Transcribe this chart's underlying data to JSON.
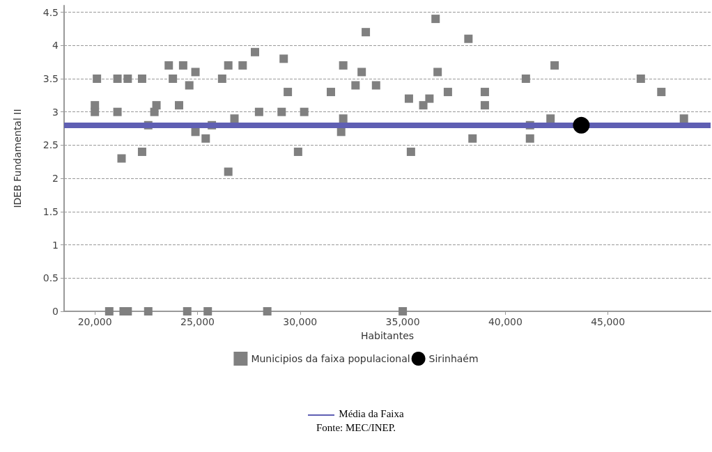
{
  "chart_data": {
    "type": "scatter",
    "xlabel": "Habitantes",
    "ylabel": "IDEB Fundamental II",
    "xlim": [
      18500,
      50000
    ],
    "ylim": [
      0,
      4.6
    ],
    "xticks": [
      {
        "value": 20000,
        "label": "20,000"
      },
      {
        "value": 25000,
        "label": "25,000"
      },
      {
        "value": 30000,
        "label": "30,000"
      },
      {
        "value": 35000,
        "label": "35,000"
      },
      {
        "value": 40000,
        "label": "40,000"
      },
      {
        "value": 45000,
        "label": "45,000"
      }
    ],
    "yticks": [
      0,
      0.5,
      1,
      1.5,
      2,
      2.5,
      3,
      3.5,
      4,
      4.5
    ],
    "grid": "y",
    "legend": "bottom",
    "series": [
      {
        "name": "Municipios da faixa populacional",
        "color": "#808080",
        "marker": "square",
        "x": [
          20100,
          20000,
          20000,
          20700,
          21100,
          21100,
          21300,
          21600,
          21400,
          21600,
          22300,
          22300,
          22600,
          22600,
          22900,
          23000,
          23600,
          23800,
          24100,
          24300,
          24500,
          24600,
          24900,
          24900,
          25400,
          25500,
          25700,
          26200,
          26500,
          26500,
          26800,
          27200,
          27800,
          28000,
          28400,
          29100,
          29200,
          29400,
          29900,
          30200,
          31500,
          32100,
          32100,
          32000,
          32700,
          33000,
          33200,
          33700,
          35000,
          35300,
          35400,
          36000,
          36300,
          36600,
          36700,
          37200,
          38200,
          38400,
          39000,
          39000,
          41000,
          41200,
          41200,
          42200,
          42400,
          46600,
          47600,
          48700
        ],
        "values": [
          3.5,
          3.1,
          3.0,
          0,
          3.5,
          3.0,
          2.3,
          3.5,
          0,
          0,
          3.5,
          2.4,
          2.8,
          0,
          3.0,
          3.1,
          3.7,
          3.5,
          3.1,
          3.7,
          0,
          3.4,
          3.6,
          2.7,
          2.6,
          0,
          2.8,
          3.5,
          2.1,
          3.7,
          2.9,
          3.7,
          3.9,
          3.0,
          0,
          3.0,
          3.8,
          3.3,
          2.4,
          3.0,
          3.3,
          3.7,
          2.9,
          2.7,
          3.4,
          3.6,
          4.2,
          3.4,
          0,
          3.2,
          2.4,
          3.1,
          3.2,
          4.4,
          3.6,
          3.3,
          4.1,
          2.6,
          3.3,
          3.1,
          3.5,
          2.6,
          2.8,
          2.9,
          3.7,
          3.5,
          3.3,
          2.9
        ]
      },
      {
        "name": "Sirinhaém",
        "color": "#000000",
        "marker": "circle",
        "x": [
          43700
        ],
        "values": [
          2.8
        ]
      }
    ],
    "ref_lines": [
      {
        "axis": "y",
        "value": 2.8,
        "label": "Média da Faixa",
        "color": "#5f5fb3"
      }
    ],
    "annotations": [
      "Fonte: MEC/INEP."
    ]
  }
}
